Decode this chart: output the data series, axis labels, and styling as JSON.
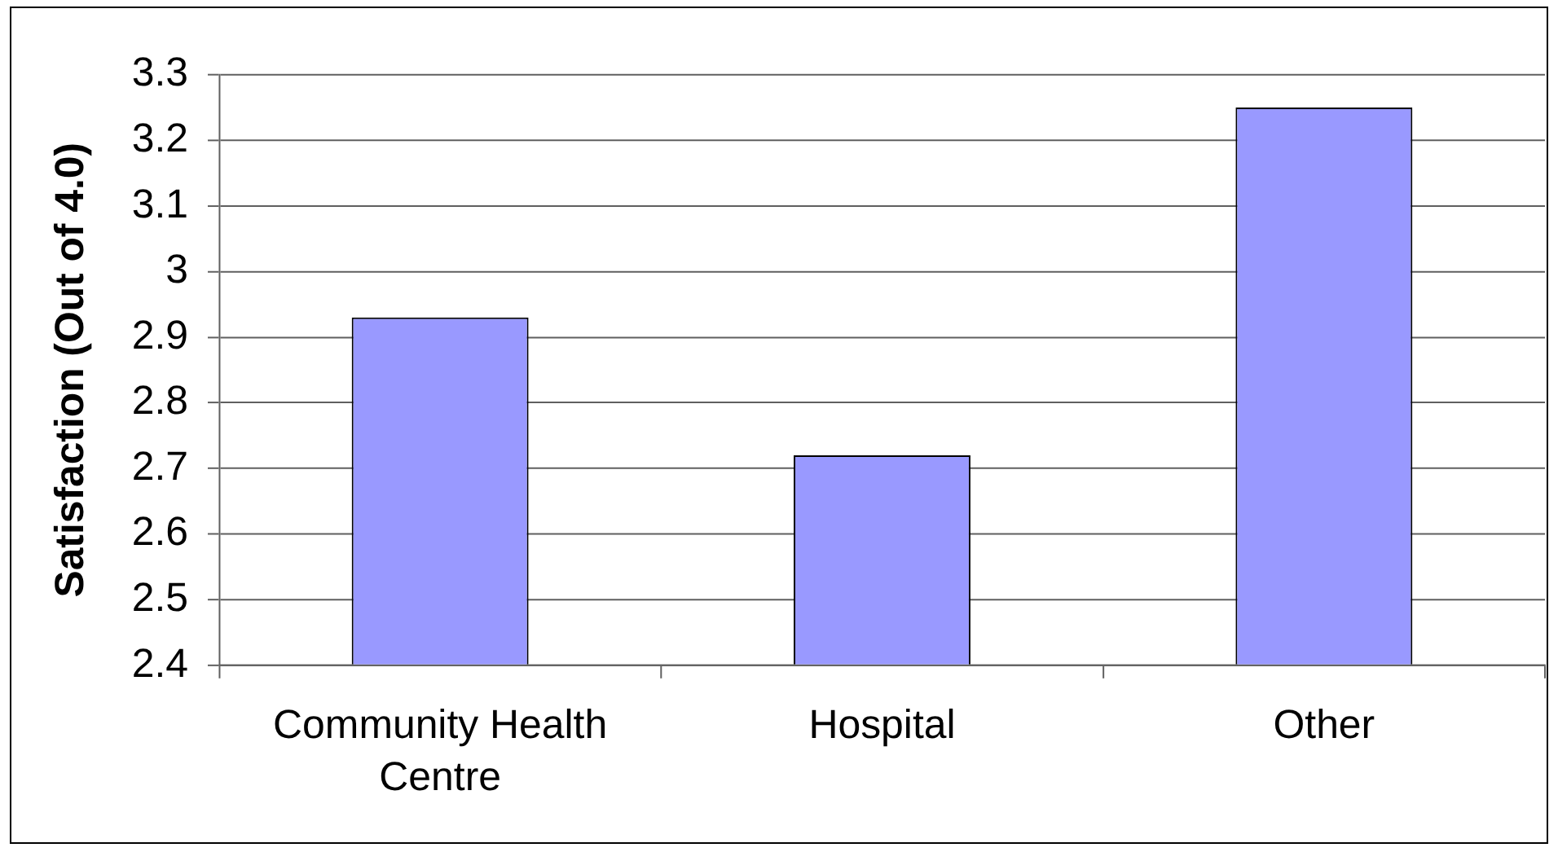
{
  "chart_data": {
    "type": "bar",
    "ylabel": "Satisfaction (Out of 4.0)",
    "categories": [
      "Community Health Centre",
      "Hospital",
      "Other"
    ],
    "values": [
      2.93,
      2.72,
      3.25
    ],
    "color": "#9999ff",
    "ylim": [
      2.4,
      3.3
    ],
    "yticks": [
      2.4,
      2.5,
      2.6,
      2.7,
      2.8,
      2.9,
      3,
      3.1,
      3.2,
      3.3
    ],
    "grid": "y",
    "legend": false
  }
}
